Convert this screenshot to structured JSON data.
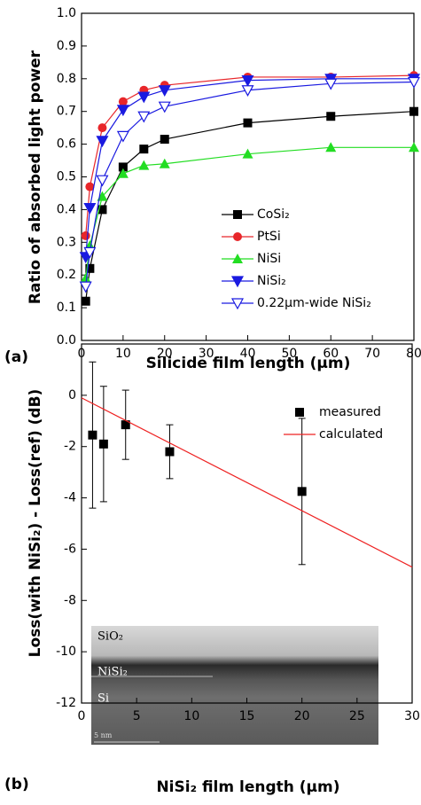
{
  "chart_data": [
    {
      "type": "line",
      "panel_label": "(a)",
      "xlabel": "Silicide film length (μm)",
      "ylabel": "Ratio of absorbed light power",
      "xlim": [
        0,
        80
      ],
      "ylim": [
        0,
        1
      ],
      "xticks": [
        0,
        10,
        20,
        30,
        40,
        50,
        60,
        70,
        80
      ],
      "yticks": [
        {
          "value": 0,
          "label": "0.0"
        },
        0.1,
        0.2,
        0.3,
        0.4,
        0.5,
        0.6,
        0.7,
        0.8,
        0.9,
        {
          "value": 1,
          "label": "1.0"
        }
      ],
      "legend": "lower right",
      "grid": false,
      "series": [
        {
          "name": "CoSi₂",
          "color": "#000000",
          "marker": "square",
          "linestyle": "solid",
          "x": [
            1,
            2,
            5,
            10,
            15,
            20,
            40,
            60,
            80
          ],
          "values": [
            0.12,
            0.22,
            0.4,
            0.53,
            0.585,
            0.615,
            0.665,
            0.685,
            0.7
          ]
        },
        {
          "name": "PtSi",
          "color": "#e8262a",
          "marker": "circle",
          "linestyle": "solid",
          "x": [
            1,
            2,
            5,
            10,
            15,
            20,
            40,
            60,
            80
          ],
          "values": [
            0.32,
            0.47,
            0.65,
            0.73,
            0.765,
            0.78,
            0.805,
            0.805,
            0.81
          ]
        },
        {
          "name": "NiSi",
          "color": "#22dd22",
          "marker": "triangle-up",
          "linestyle": "solid",
          "x": [
            1,
            2,
            5,
            10,
            15,
            20,
            40,
            60,
            80
          ],
          "values": [
            0.19,
            0.29,
            0.44,
            0.51,
            0.535,
            0.54,
            0.57,
            0.59,
            0.59
          ]
        },
        {
          "name": "NiSi₂",
          "color": "#1a1ae0",
          "marker": "triangle-down",
          "linestyle": "solid",
          "x": [
            1,
            2,
            5,
            10,
            15,
            20,
            40,
            60,
            80
          ],
          "values": [
            0.255,
            0.405,
            0.61,
            0.705,
            0.745,
            0.765,
            0.795,
            0.8,
            0.8
          ]
        },
        {
          "name": "0.22μm-wide NiSi₂",
          "color": "#1a1ae0",
          "marker": "triangle-down-open",
          "linestyle": "solid",
          "x": [
            1,
            2,
            5,
            10,
            15,
            20,
            40,
            60,
            80
          ],
          "values": [
            0.165,
            0.27,
            0.49,
            0.625,
            0.685,
            0.715,
            0.765,
            0.785,
            0.79
          ]
        }
      ]
    },
    {
      "type": "line",
      "panel_label": "(b)",
      "xlabel": "NiSi₂ film length (μm)",
      "ylabel": "Loss(with NiSi₂) - Loss(ref) (dB)",
      "xlim": [
        0,
        30
      ],
      "ylim": [
        -12,
        2
      ],
      "xticks": [
        0,
        5,
        10,
        15,
        20,
        25,
        30
      ],
      "yticks": [
        -12,
        -10,
        -8,
        -6,
        -4,
        -2,
        0
      ],
      "legend": "upper right",
      "grid": false,
      "inset_labels": [
        "SiO₂",
        "NiSi₂",
        "Si",
        "5 nm"
      ],
      "series": [
        {
          "name": "measured",
          "color": "#000000",
          "marker": "square",
          "linestyle": "none",
          "x": [
            1,
            2,
            4,
            8,
            20
          ],
          "values": [
            -1.55,
            -1.9,
            -1.15,
            -2.2,
            -3.75
          ],
          "errors": [
            2.85,
            2.25,
            1.35,
            1.05,
            2.85
          ]
        },
        {
          "name": "calculated",
          "color": "#ee2222",
          "marker": "none",
          "linestyle": "solid",
          "x": [
            0,
            30
          ],
          "values": [
            -0.1,
            -6.7
          ]
        }
      ]
    }
  ]
}
